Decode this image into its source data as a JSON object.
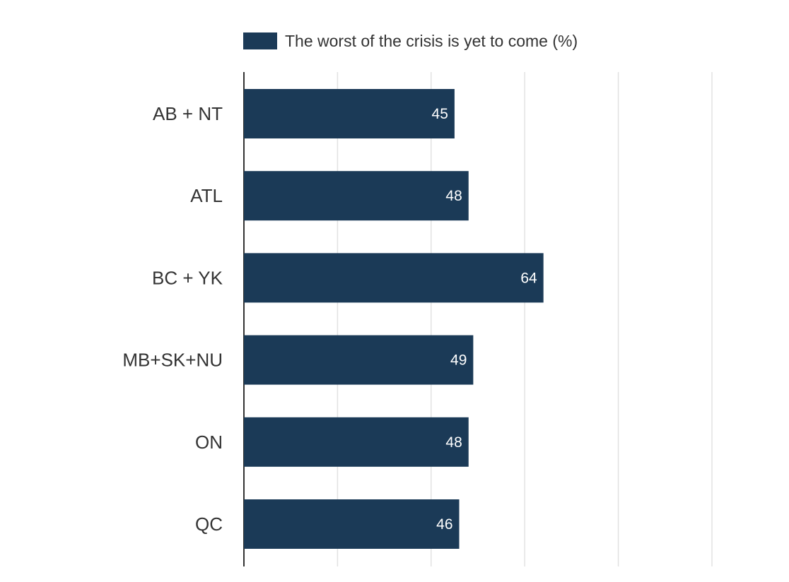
{
  "chart_data": {
    "type": "bar",
    "orientation": "horizontal",
    "title": "",
    "xlabel": "",
    "ylabel": "",
    "categories": [
      "AB + NT",
      "ATL",
      "BC + YK",
      "MB+SK+NU",
      "ON",
      "QC"
    ],
    "series": [
      {
        "name": "The worst of the crisis is yet to come (%)",
        "values": [
          45,
          48,
          64,
          49,
          48,
          46
        ],
        "color": "#1b3a57"
      }
    ],
    "xlim": [
      0,
      100
    ],
    "grid": true,
    "legend_position": "top",
    "data_labels": true
  }
}
